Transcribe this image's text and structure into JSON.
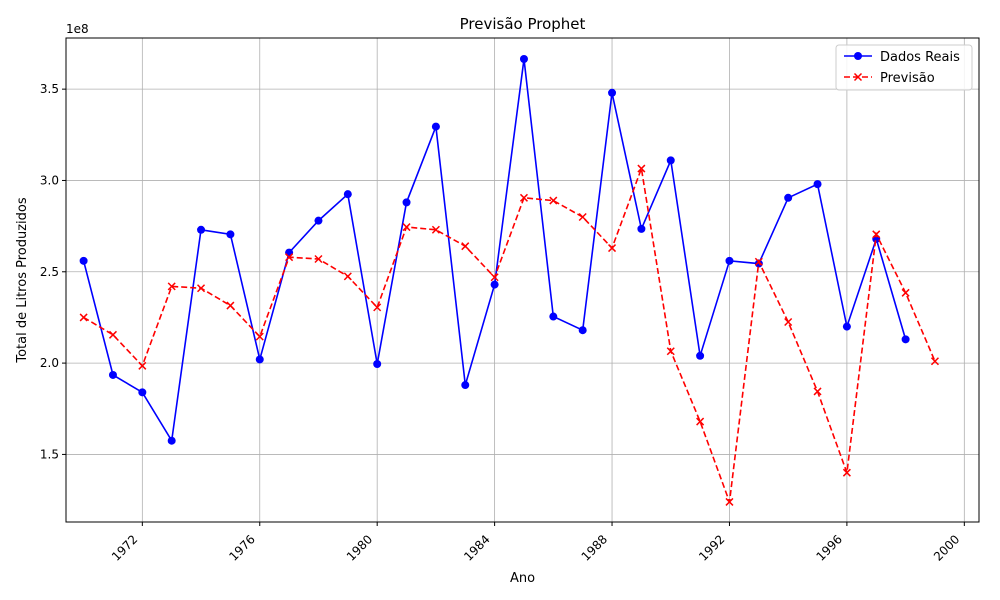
{
  "chart_data": {
    "type": "line",
    "title": "Previsão Prophet",
    "xlabel": "Ano",
    "ylabel": "Total de Litros Produzidos",
    "y_scale_label": "1e8",
    "xlim": [
      1969.4,
      2000.5
    ],
    "ylim": [
      1.13,
      3.78
    ],
    "x_ticks": [
      1972,
      1976,
      1980,
      1984,
      1988,
      1992,
      1996,
      2000
    ],
    "y_ticks": [
      1.5,
      2.0,
      2.5,
      3.0,
      3.5
    ],
    "grid": true,
    "legend_position": "top-right",
    "series": [
      {
        "name": "Dados Reais",
        "color": "#0000ff",
        "line_style": "solid",
        "marker": "circle",
        "x": [
          1970,
          1971,
          1972,
          1973,
          1974,
          1975,
          1976,
          1977,
          1978,
          1979,
          1980,
          1981,
          1982,
          1983,
          1984,
          1985,
          1986,
          1987,
          1988,
          1989,
          1990,
          1991,
          1992,
          1993,
          1994,
          1995,
          1996,
          1997,
          1998
        ],
        "y": [
          2.56,
          1.935,
          1.84,
          1.575,
          2.73,
          2.705,
          2.02,
          2.605,
          2.78,
          2.925,
          1.995,
          2.88,
          3.295,
          1.88,
          2.43,
          3.665,
          2.255,
          2.18,
          3.48,
          2.735,
          3.11,
          2.04,
          2.56,
          2.545,
          2.905,
          2.98,
          2.2,
          2.68,
          2.13
        ]
      },
      {
        "name": "Previsão",
        "color": "#ff0000",
        "line_style": "dashed",
        "marker": "x",
        "x": [
          1970,
          1971,
          1972,
          1973,
          1974,
          1975,
          1976,
          1977,
          1978,
          1979,
          1980,
          1981,
          1982,
          1983,
          1984,
          1985,
          1986,
          1987,
          1988,
          1989,
          1990,
          1991,
          1992,
          1993,
          1994,
          1995,
          1996,
          1997,
          1998,
          1999
        ],
        "y": [
          2.25,
          2.155,
          1.985,
          2.42,
          2.41,
          2.315,
          2.145,
          2.58,
          2.57,
          2.475,
          2.305,
          2.745,
          2.73,
          2.64,
          2.47,
          2.905,
          2.89,
          2.8,
          2.63,
          3.065,
          2.065,
          1.68,
          1.24,
          2.555,
          2.225,
          1.845,
          1.4,
          2.705,
          2.385,
          2.01
        ]
      }
    ]
  }
}
